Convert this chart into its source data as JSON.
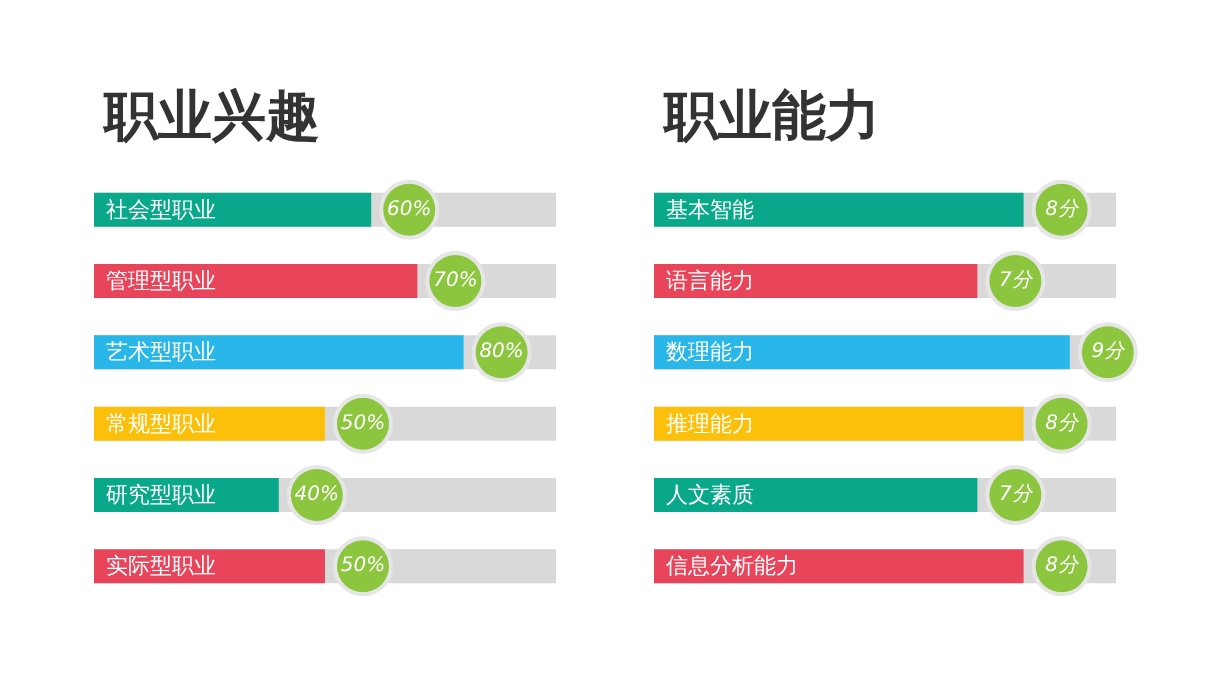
{
  "chart_data": [
    {
      "type": "bar",
      "orientation": "horizontal",
      "title": "职业兴趣",
      "categories": [
        "社会型职业",
        "管理型职业",
        "艺术型职业",
        "常规型职业",
        "研究型职业",
        "实际型职业"
      ],
      "values": [
        60,
        70,
        80,
        50,
        40,
        50
      ],
      "value_labels": [
        "60%",
        "70%",
        "80%",
        "50%",
        "40%",
        "50%"
      ],
      "colors": [
        "#0aa88a",
        "#e8455a",
        "#29b6e8",
        "#fcbf0a",
        "#0aa88a",
        "#e8455a"
      ],
      "xlim": [
        0,
        100
      ],
      "tick_labels": "y"
    },
    {
      "type": "bar",
      "orientation": "horizontal",
      "title": "职业能力",
      "categories": [
        "基本智能",
        "语言能力",
        "数理能力",
        "推理能力",
        "人文素质",
        "信息分析能力"
      ],
      "values": [
        8,
        7,
        9,
        8,
        7,
        8
      ],
      "value_labels": [
        "8分",
        "7分",
        "9分",
        "8分",
        "7分",
        "8分"
      ],
      "colors": [
        "#0aa88a",
        "#e8455a",
        "#29b6e8",
        "#fcbf0a",
        "#0aa88a",
        "#e8455a"
      ],
      "xlim": [
        0,
        10
      ],
      "tick_labels": "y"
    }
  ]
}
